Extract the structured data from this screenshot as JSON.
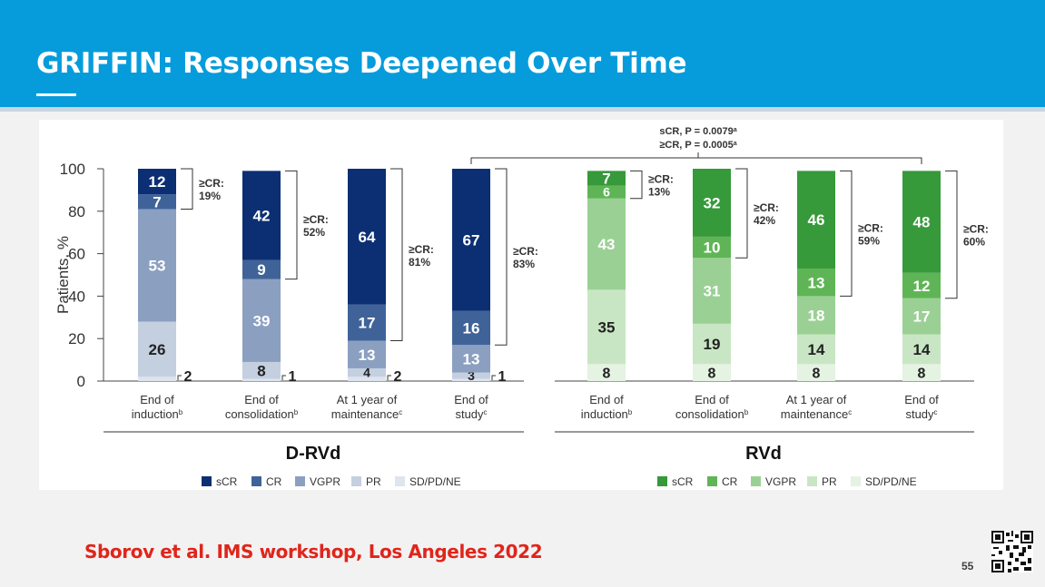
{
  "slide": {
    "title": "GRIFFIN: Responses Deepened Over Time",
    "citation": "Sborov et al. IMS workshop, Los Angeles 2022",
    "page_number": "55"
  },
  "chart_data": [
    {
      "type": "bar",
      "stacked": true,
      "group_label": "D-RVd",
      "ylabel": "Patients, %",
      "ylim": [
        0,
        100
      ],
      "yticks": [
        0,
        20,
        40,
        60,
        80,
        100
      ],
      "categories": [
        {
          "line1": "End of",
          "line2": "induction",
          "sup": "b"
        },
        {
          "line1": "End of",
          "line2": "consolidation",
          "sup": "b"
        },
        {
          "line1": "At 1 year of",
          "line2": "maintenance",
          "sup": "c"
        },
        {
          "line1": "End of",
          "line2": "study",
          "sup": "c"
        }
      ],
      "series": [
        {
          "name": "SD/PD/NE",
          "color": "#dfe5ee",
          "values": [
            2,
            1,
            2,
            1
          ]
        },
        {
          "name": "PR",
          "color": "#c4cfe0",
          "values": [
            26,
            8,
            4,
            3
          ]
        },
        {
          "name": "VGPR",
          "color": "#8b9fc1",
          "values": [
            53,
            39,
            13,
            13
          ]
        },
        {
          "name": "CR",
          "color": "#3f6399",
          "values": [
            7,
            9,
            17,
            16
          ]
        },
        {
          "name": "sCR",
          "color": "#0c2f73",
          "values": [
            12,
            42,
            64,
            67
          ]
        }
      ],
      "cr_labels": [
        "≥CR:\n19%",
        "≥CR:\n52%",
        "≥CR:\n81%",
        "≥CR:\n83%"
      ],
      "legend_order": [
        "sCR",
        "CR",
        "VGPR",
        "PR",
        "SD/PD/NE"
      ]
    },
    {
      "type": "bar",
      "stacked": true,
      "group_label": "RVd",
      "ylim": [
        0,
        100
      ],
      "categories": [
        {
          "line1": "End of",
          "line2": "induction",
          "sup": "b"
        },
        {
          "line1": "End of",
          "line2": "consolidation",
          "sup": "b"
        },
        {
          "line1": "At 1 year of",
          "line2": "maintenance",
          "sup": "c"
        },
        {
          "line1": "End of",
          "line2": "study",
          "sup": "c"
        }
      ],
      "series": [
        {
          "name": "SD/PD/NE",
          "color": "#e4f3e2",
          "values": [
            8,
            8,
            8,
            8
          ]
        },
        {
          "name": "PR",
          "color": "#c9e6c4",
          "values": [
            35,
            19,
            14,
            14
          ]
        },
        {
          "name": "VGPR",
          "color": "#9bd095",
          "values": [
            43,
            31,
            18,
            17
          ]
        },
        {
          "name": "CR",
          "color": "#5fb556",
          "values": [
            6,
            10,
            13,
            12
          ]
        },
        {
          "name": "sCR",
          "color": "#36993a",
          "values": [
            7,
            32,
            46,
            48
          ]
        }
      ],
      "cr_labels": [
        "≥CR:\n13%",
        "≥CR:\n42%",
        "≥CR:\n59%",
        "≥CR:\n60%"
      ],
      "legend_order": [
        "sCR",
        "CR",
        "VGPR",
        "PR",
        "SD/PD/NE"
      ]
    }
  ],
  "comparison": {
    "line1": "sCR, P = 0.0079",
    "line2": "≥CR, P = 0.0005",
    "sup": "a"
  },
  "qr_icon": "qr-code-icon"
}
